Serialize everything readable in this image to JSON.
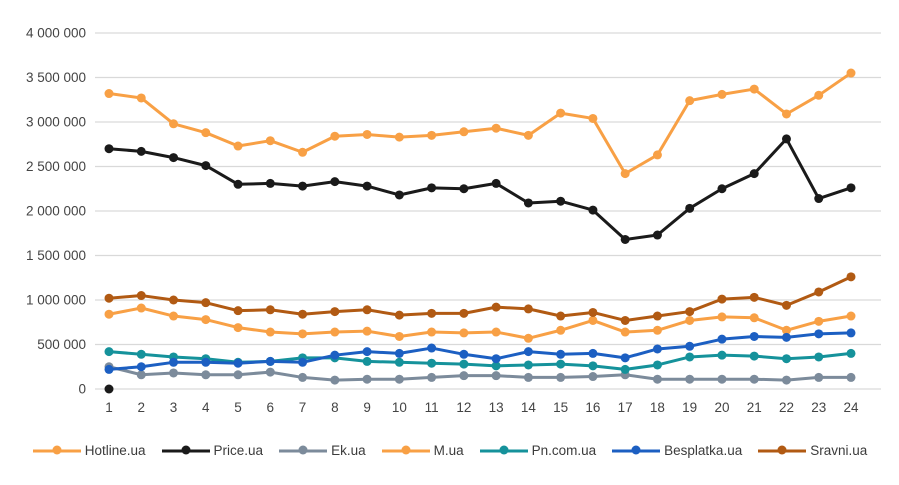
{
  "chart_data": {
    "type": "line",
    "title": "",
    "xlabel": "",
    "ylabel": "",
    "grid": "horizontal",
    "legend_position": "bottom",
    "x": [
      1,
      2,
      3,
      4,
      5,
      6,
      7,
      8,
      9,
      10,
      11,
      12,
      13,
      14,
      15,
      16,
      17,
      18,
      19,
      20,
      21,
      22,
      23,
      24
    ],
    "y_axis": {
      "min": 0,
      "max": 4000000,
      "tick_values": [
        0,
        500000,
        1000000,
        1500000,
        2000000,
        2500000,
        3000000,
        3500000,
        4000000
      ],
      "tick_labels": [
        "0",
        "500 000",
        "1 000 000",
        "1 500 000",
        "2 000 000",
        "2 500 000",
        "3 000 000",
        "3 500 000",
        "4 000 000"
      ]
    },
    "series": [
      {
        "name": "Hotline.ua",
        "color": "#F8A045",
        "values": [
          3320000,
          3270000,
          2980000,
          2880000,
          2730000,
          2790000,
          2660000,
          2840000,
          2860000,
          2830000,
          2850000,
          2890000,
          2930000,
          2850000,
          3100000,
          3040000,
          2420000,
          2630000,
          3240000,
          3310000,
          3370000,
          3090000,
          3300000,
          3550000
        ]
      },
      {
        "name": "Price.ua",
        "color": "#1A1A1A",
        "values": [
          2700000,
          2670000,
          2600000,
          2510000,
          2300000,
          2310000,
          2280000,
          2330000,
          2280000,
          2180000,
          2260000,
          2250000,
          2310000,
          2090000,
          2110000,
          2010000,
          1680000,
          1730000,
          2030000,
          2250000,
          2420000,
          2810000,
          2140000,
          2260000
        ]
      },
      {
        "name": "Ek.ua",
        "color": "#7C8B9B",
        "values": [
          250000,
          160000,
          180000,
          160000,
          160000,
          190000,
          130000,
          100000,
          110000,
          110000,
          130000,
          150000,
          150000,
          130000,
          130000,
          140000,
          160000,
          110000,
          110000,
          110000,
          110000,
          100000,
          130000,
          130000
        ]
      },
      {
        "name": "M.ua",
        "color": "#F8A045",
        "values": [
          840000,
          910000,
          820000,
          780000,
          690000,
          640000,
          620000,
          640000,
          650000,
          590000,
          640000,
          630000,
          640000,
          570000,
          660000,
          770000,
          640000,
          660000,
          770000,
          810000,
          800000,
          660000,
          760000,
          820000
        ]
      },
      {
        "name": "Pn.com.ua",
        "color": "#15929B",
        "values": [
          420000,
          390000,
          360000,
          340000,
          300000,
          310000,
          350000,
          350000,
          310000,
          300000,
          290000,
          280000,
          260000,
          270000,
          280000,
          260000,
          220000,
          270000,
          360000,
          380000,
          370000,
          340000,
          360000,
          400000
        ]
      },
      {
        "name": "Besplatka.ua",
        "color": "#1C5FC2",
        "values": [
          220000,
          250000,
          300000,
          300000,
          290000,
          310000,
          300000,
          380000,
          420000,
          400000,
          460000,
          390000,
          340000,
          420000,
          390000,
          400000,
          350000,
          450000,
          480000,
          560000,
          590000,
          580000,
          620000,
          630000
        ]
      },
      {
        "name": "Sravni.ua",
        "color": "#B15A13",
        "values": [
          1020000,
          1050000,
          1000000,
          970000,
          880000,
          890000,
          840000,
          870000,
          890000,
          830000,
          850000,
          850000,
          920000,
          900000,
          820000,
          860000,
          770000,
          820000,
          870000,
          1010000,
          1030000,
          940000,
          1090000,
          1260000
        ]
      }
    ],
    "extra_points": [
      {
        "x": 1,
        "value": 0,
        "color": "#1A1A1A"
      }
    ]
  },
  "legend": {
    "items": [
      "Hotline.ua",
      "Price.ua",
      "Ek.ua",
      "M.ua",
      "Pn.com.ua",
      "Besplatka.ua",
      "Sravni.ua"
    ]
  },
  "colors": {
    "gridline": "#D9D9D9",
    "tick_text": "#444444",
    "legend_text": "#3B3B3B",
    "background": "#FFFFFF"
  }
}
